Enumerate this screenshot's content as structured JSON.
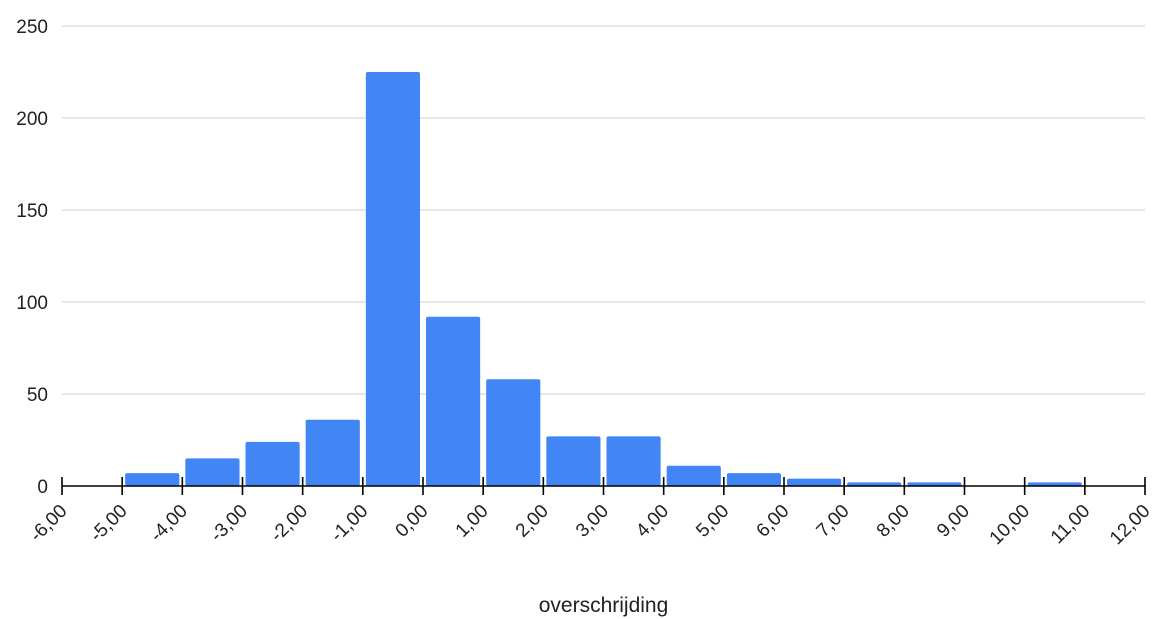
{
  "chart_data": {
    "type": "bar",
    "title": "",
    "xlabel": "overschrijding",
    "ylabel": "",
    "ylim": [
      0,
      250
    ],
    "xlim": [
      -6,
      12
    ],
    "y_ticks": [
      "0",
      "50",
      "100",
      "150",
      "200",
      "250"
    ],
    "x_ticks": [
      "-6,00",
      "-5,00",
      "-4,00",
      "-3,00",
      "-2,00",
      "-1,00",
      "0,00",
      "1,00",
      "2,00",
      "3,00",
      "4,00",
      "5,00",
      "6,00",
      "7,00",
      "8,00",
      "9,00",
      "10,00",
      "11,00",
      "12,00"
    ],
    "bins": [
      {
        "start": -5,
        "end": -4,
        "value": 7
      },
      {
        "start": -4,
        "end": -3,
        "value": 15
      },
      {
        "start": -3,
        "end": -2,
        "value": 24
      },
      {
        "start": -2,
        "end": -1,
        "value": 36
      },
      {
        "start": -1,
        "end": 0,
        "value": 225
      },
      {
        "start": 0,
        "end": 1,
        "value": 92
      },
      {
        "start": 1,
        "end": 2,
        "value": 58
      },
      {
        "start": 2,
        "end": 3,
        "value": 27
      },
      {
        "start": 3,
        "end": 4,
        "value": 27
      },
      {
        "start": 4,
        "end": 5,
        "value": 11
      },
      {
        "start": 5,
        "end": 6,
        "value": 7
      },
      {
        "start": 6,
        "end": 7,
        "value": 4
      },
      {
        "start": 7,
        "end": 8,
        "value": 2
      },
      {
        "start": 8,
        "end": 9,
        "value": 2
      },
      {
        "start": 10,
        "end": 11,
        "value": 2
      }
    ],
    "bar_color": "#4285f4",
    "grid": true,
    "legend": "none"
  }
}
